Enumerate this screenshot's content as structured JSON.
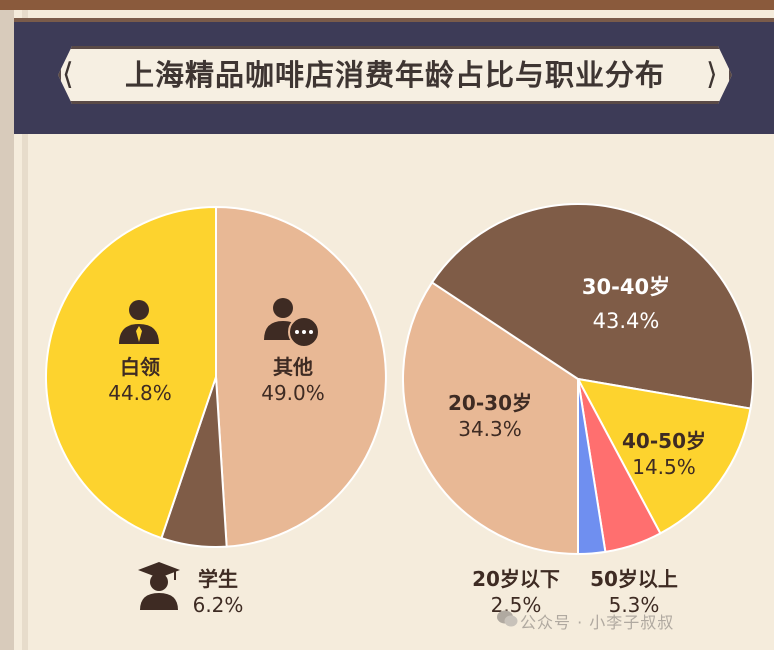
{
  "title": "上海精品咖啡店消费年龄占比与职业分布",
  "watermark": "公众号 · 小李子叔叔",
  "icons": {
    "occupation_white_collar": "businessman-icon",
    "occupation_other": "person-chat-icon",
    "occupation_student": "graduate-icon",
    "watermark": "wechat-icon"
  },
  "colors": {
    "header_band": "#3d3b57",
    "background": "#f5ecdc"
  },
  "chart_data": [
    {
      "type": "pie",
      "name": "",
      "slices": [
        {
          "label": "白领",
          "value": 44.8,
          "display": "44.8%",
          "color": "#fdd32e"
        },
        {
          "label": "学生",
          "value": 6.2,
          "display": "6.2%",
          "color": "#7f5c47"
        },
        {
          "label": "其他",
          "value": 49.0,
          "display": "49.0%",
          "color": "#e8b895"
        }
      ]
    },
    {
      "type": "pie",
      "name": "",
      "slices": [
        {
          "label": "30-40岁",
          "value": 43.4,
          "display": "43.4%",
          "color": "#7f5c47"
        },
        {
          "label": "40-50岁",
          "value": 14.5,
          "display": "14.5%",
          "color": "#fdd32e"
        },
        {
          "label": "50岁以上",
          "value": 5.3,
          "display": "5.3%",
          "color": "#ff6f6f"
        },
        {
          "label": "20岁以下",
          "value": 2.5,
          "display": "2.5%",
          "color": "#6f8ff0"
        },
        {
          "label": "20-30岁",
          "value": 34.3,
          "display": "34.3%",
          "color": "#e8b895"
        }
      ]
    }
  ]
}
